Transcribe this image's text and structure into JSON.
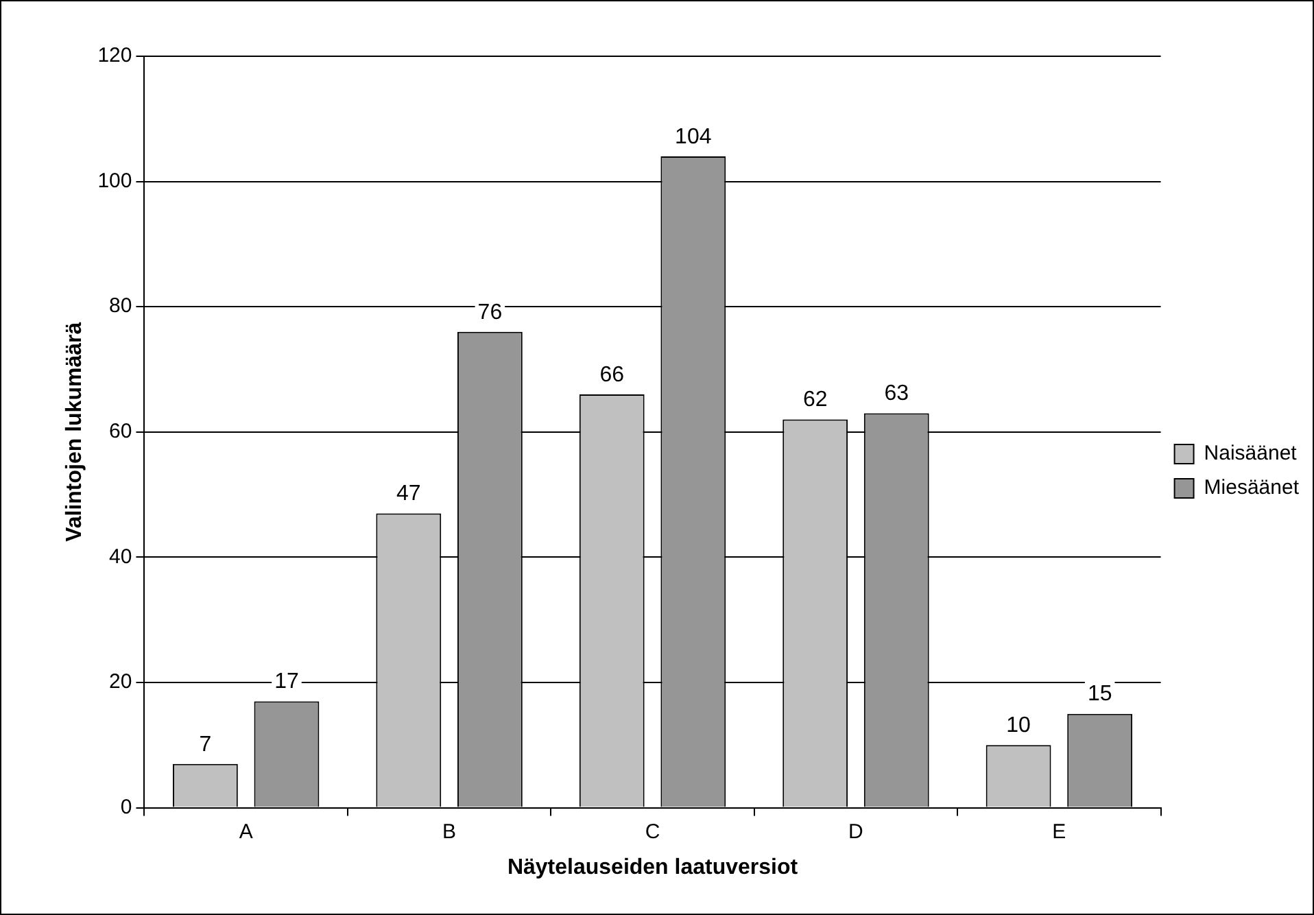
{
  "chart_data": {
    "type": "bar",
    "xlabel": "Näytelauseiden laatuversiot",
    "ylabel": "Valintojen lukumäärä",
    "categories": [
      "A",
      "B",
      "C",
      "D",
      "E"
    ],
    "series": [
      {
        "name": "Naisäänet",
        "color": "#c0c0c0",
        "values": [
          7,
          47,
          66,
          62,
          10
        ]
      },
      {
        "name": "Miesäänet",
        "color": "#969696",
        "values": [
          17,
          76,
          104,
          63,
          15
        ]
      }
    ],
    "ylim": [
      0,
      120
    ],
    "yticks": [
      0,
      20,
      40,
      60,
      80,
      100,
      120
    ],
    "grid": "y",
    "legend": "right",
    "data_labels": true
  }
}
